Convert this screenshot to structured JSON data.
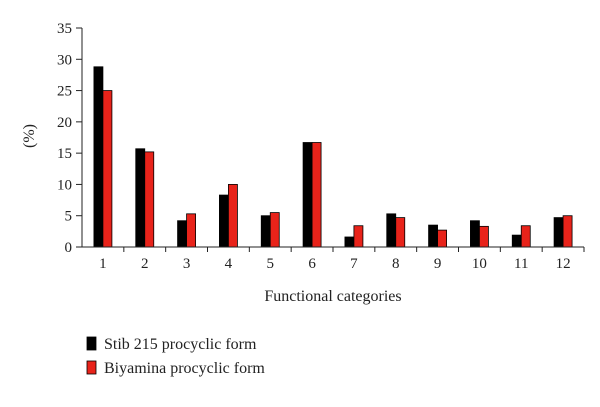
{
  "chart_data": {
    "type": "bar",
    "title": "",
    "xlabel": "Functional categories",
    "ylabel": "(%)",
    "ylim": [
      0,
      35
    ],
    "yticks": [
      0,
      5,
      10,
      15,
      20,
      25,
      30,
      35
    ],
    "grid": false,
    "legend_position": "bottom-left",
    "categories": [
      "1",
      "2",
      "3",
      "4",
      "5",
      "6",
      "7",
      "8",
      "9",
      "10",
      "11",
      "12"
    ],
    "series": [
      {
        "name": "Stib 215 procyclic form",
        "color": "#000000",
        "values": [
          28.8,
          15.7,
          4.2,
          8.3,
          5.0,
          16.7,
          1.6,
          5.3,
          3.5,
          4.2,
          1.9,
          4.7
        ]
      },
      {
        "name": "Biyamina procyclic form",
        "color": "#e8231a",
        "values": [
          25.0,
          15.2,
          5.3,
          10.0,
          5.5,
          16.7,
          3.4,
          4.7,
          2.7,
          3.3,
          3.4,
          5.0
        ]
      }
    ]
  }
}
